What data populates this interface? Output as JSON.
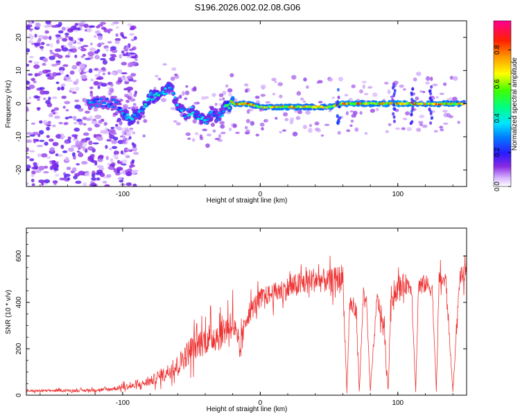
{
  "title": "S196.2026.002.02.08.G06",
  "colors": {
    "snr_line": "#ee3333",
    "axis": "#000000"
  },
  "chart_data": [
    {
      "type": "heatmap",
      "xlabel": "Height of straight line (km)",
      "ylabel": "Frequency (Hz)",
      "xlim": [
        -170,
        150
      ],
      "ylim": [
        -25,
        25
      ],
      "xticks": [
        -100,
        0,
        100
      ],
      "xtick_labels": [
        "-100",
        "0",
        "100"
      ],
      "yticks": [
        -20,
        -10,
        0,
        10,
        20
      ],
      "ytick_labels": [
        "-20",
        "-10",
        "0",
        "10",
        "20"
      ],
      "colorbar": {
        "label": "Normalized spectral amplitude",
        "range": [
          0.0,
          0.97
        ],
        "ticks": [
          0.0,
          0.2,
          0.4,
          0.6,
          0.8
        ],
        "tick_labels": [
          "0.0",
          "0.2",
          "0.4",
          "0.6",
          "0.8"
        ],
        "colormap": "rainbow (white-purple-blue-cyan-green-yellow-orange-red-magenta)"
      },
      "ridge": {
        "description": "Dominant frequency track vs height",
        "x": [
          -125,
          -115,
          -105,
          -95,
          -88,
          -80,
          -72,
          -65,
          -60,
          -55,
          -50,
          -45,
          -40,
          -35,
          -30,
          -25,
          -20,
          -10,
          0,
          10,
          20,
          30,
          40,
          50,
          60,
          70,
          80,
          90,
          100,
          110,
          120,
          130,
          140,
          148
        ],
        "frequency": [
          0,
          0.5,
          0,
          -5,
          -3,
          2,
          3,
          5,
          -1,
          -3,
          -2,
          -4,
          -5,
          -3,
          -4,
          -1,
          0,
          0,
          -1,
          -1,
          -1,
          -1,
          -1,
          -1,
          0,
          0,
          0,
          0,
          0,
          0,
          0,
          0,
          0,
          0
        ],
        "amplitude": [
          0.35,
          0.3,
          0.3,
          0.45,
          0.4,
          0.5,
          0.45,
          0.4,
          0.4,
          0.35,
          0.4,
          0.45,
          0.4,
          0.4,
          0.35,
          0.5,
          0.8,
          0.85,
          0.75,
          0.8,
          0.85,
          0.8,
          0.75,
          0.8,
          0.9,
          0.85,
          0.8,
          0.85,
          0.9,
          0.85,
          0.8,
          0.85,
          0.8,
          0.75
        ]
      },
      "noise_region": {
        "x_from": -170,
        "x_to": -100,
        "amplitude": 0.1
      }
    },
    {
      "type": "line",
      "xlabel": "Height of straight line (km)",
      "ylabel": "SNR (10 * v/v)",
      "xlim": [
        -170,
        150
      ],
      "ylim": [
        0,
        720
      ],
      "xticks": [
        -100,
        0,
        100
      ],
      "xtick_labels": [
        "-100",
        "0",
        "100"
      ],
      "yticks": [
        0,
        200,
        400,
        600
      ],
      "ytick_labels": [
        "0",
        "200",
        "400",
        "600"
      ],
      "series": [
        {
          "name": "SNR",
          "x": [
            -170,
            -150,
            -130,
            -110,
            -100,
            -90,
            -80,
            -70,
            -60,
            -50,
            -40,
            -30,
            -20,
            -15,
            -10,
            0,
            10,
            20,
            30,
            40,
            50,
            55,
            60,
            63,
            65,
            70,
            72,
            75,
            77,
            80,
            85,
            90,
            93,
            95,
            100,
            105,
            110,
            113,
            115,
            120,
            125,
            128,
            130,
            135,
            140,
            145,
            150
          ],
          "mean": [
            18,
            20,
            20,
            25,
            35,
            40,
            60,
            90,
            130,
            200,
            240,
            260,
            320,
            180,
            340,
            420,
            440,
            460,
            480,
            500,
            490,
            500,
            510,
            10,
            400,
            350,
            15,
            440,
            420,
            18,
            420,
            280,
            20,
            420,
            460,
            480,
            470,
            15,
            470,
            480,
            460,
            15,
            500,
            490,
            15,
            510,
            520
          ],
          "spread": [
            10,
            10,
            12,
            15,
            25,
            30,
            40,
            60,
            90,
            120,
            130,
            140,
            150,
            120,
            100,
            80,
            90,
            100,
            110,
            110,
            100,
            110,
            120,
            8,
            90,
            80,
            10,
            80,
            80,
            10,
            80,
            100,
            10,
            100,
            100,
            90,
            80,
            10,
            90,
            80,
            80,
            10,
            80,
            80,
            10,
            80,
            80
          ]
        }
      ]
    }
  ]
}
